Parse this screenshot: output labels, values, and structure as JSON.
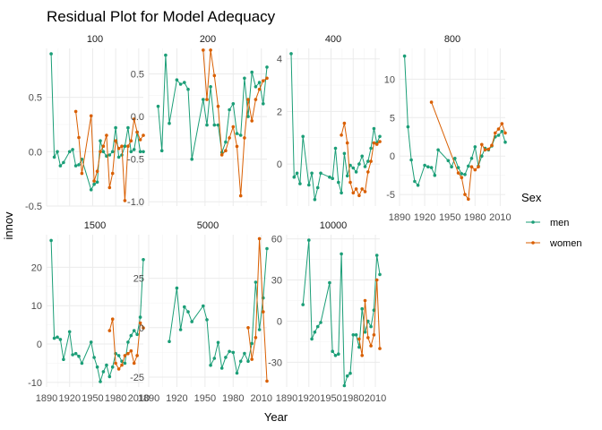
{
  "chart_data": {
    "type": "line",
    "title": "Residual Plot for Model Adequacy",
    "xlabel": "Year",
    "ylabel": "innov",
    "legend": {
      "title": "Sex",
      "placement": "right",
      "entries": [
        "men",
        "women"
      ]
    },
    "colors": {
      "men": "#1b9e77",
      "women": "#d95f02"
    },
    "grid": true,
    "x_ticks": [
      1890,
      1920,
      1950,
      1980,
      2010
    ],
    "xlim": [
      1890,
      2016
    ],
    "panels": [
      {
        "label": "100",
        "ylim": [
          -0.5,
          0.95
        ],
        "y_ticks": [
          -0.5,
          0.0,
          0.5
        ],
        "y_tick_labels": [
          "-0.5",
          "0.0",
          "0.5"
        ],
        "series": [
          {
            "name": "men",
            "x": [
              1896,
              1900,
              1904,
              1908,
              1912,
              1920,
              1924,
              1928,
              1932,
              1936,
              1948,
              1952,
              1956,
              1960,
              1964,
              1968,
              1972,
              1976,
              1980,
              1984,
              1988,
              1992,
              1996,
              2000,
              2004,
              2008,
              2012,
              2016
            ],
            "y": [
              0.9,
              -0.05,
              0.0,
              -0.13,
              -0.1,
              0.0,
              0.02,
              -0.13,
              -0.12,
              -0.07,
              -0.35,
              -0.3,
              -0.28,
              0.1,
              0.0,
              -0.04,
              -0.03,
              0.0,
              0.22,
              -0.05,
              -0.03,
              0.05,
              0.22,
              0.0,
              0.02,
              0.18,
              0.0,
              0.0
            ]
          },
          {
            "name": "women",
            "x": [
              1928,
              1932,
              1936,
              1948,
              1952,
              1956,
              1960,
              1964,
              1968,
              1972,
              1976,
              1980,
              1984,
              1988,
              1992,
              1996,
              2000,
              2004,
              2008,
              2012,
              2016
            ],
            "y": [
              0.37,
              0.13,
              -0.2,
              0.33,
              -0.27,
              -0.18,
              0.0,
              0.05,
              0.15,
              -0.33,
              -0.2,
              0.1,
              0.03,
              0.05,
              -0.45,
              0.05,
              0.1,
              0.3,
              0.18,
              0.11,
              0.15
            ]
          }
        ]
      },
      {
        "label": "200",
        "ylim": [
          -1.05,
          0.8
        ],
        "y_ticks": [
          -1.0,
          -0.5,
          0.0,
          0.5
        ],
        "y_tick_labels": [
          "-1.0",
          "-0.5",
          "0.0",
          "0.5"
        ],
        "series": [
          {
            "name": "men",
            "x": [
              1900,
              1904,
              1908,
              1912,
              1920,
              1924,
              1928,
              1932,
              1936,
              1948,
              1952,
              1956,
              1960,
              1964,
              1968,
              1972,
              1976,
              1980,
              1984,
              1988,
              1992,
              1996,
              2000,
              2004,
              2008,
              2012,
              2016
            ],
            "y": [
              0.12,
              -0.4,
              0.72,
              -0.08,
              0.43,
              0.38,
              0.4,
              0.32,
              -0.5,
              0.2,
              -0.1,
              0.35,
              -0.1,
              -0.1,
              -0.42,
              -0.3,
              0.08,
              0.15,
              -0.2,
              -0.22,
              0.45,
              0.0,
              0.52,
              0.35,
              0.4,
              0.15,
              0.58
            ]
          },
          {
            "name": "women",
            "x": [
              1948,
              1952,
              1956,
              1960,
              1964,
              1968,
              1972,
              1976,
              1980,
              1984,
              1988,
              1992,
              1996,
              2000,
              2004,
              2008,
              2012,
              2016
            ],
            "y": [
              0.78,
              0.2,
              0.78,
              0.48,
              0.12,
              -0.45,
              -0.4,
              -0.25,
              -0.12,
              -0.35,
              -0.93,
              -0.25,
              0.2,
              -0.05,
              0.2,
              0.32,
              0.42,
              0.45
            ]
          }
        ]
      },
      {
        "label": "400",
        "ylim": [
          -1.6,
          4.4
        ],
        "y_ticks": [
          0,
          2,
          4
        ],
        "y_tick_labels": [
          "0",
          "2",
          "4"
        ],
        "series": [
          {
            "name": "men",
            "x": [
              1896,
              1900,
              1904,
              1908,
              1912,
              1920,
              1924,
              1928,
              1932,
              1936,
              1948,
              1952,
              1956,
              1960,
              1964,
              1968,
              1972,
              1976,
              1980,
              1984,
              1988,
              1992,
              1996,
              2000,
              2004,
              2008,
              2012,
              2016
            ],
            "y": [
              4.2,
              -0.5,
              -0.35,
              -0.75,
              1.05,
              -0.8,
              -0.35,
              -1.35,
              -0.9,
              -0.35,
              -0.5,
              -0.55,
              0.6,
              -0.7,
              -1.1,
              0.4,
              -0.45,
              -0.05,
              -0.15,
              -0.3,
              0.0,
              0.3,
              -0.1,
              0.1,
              0.6,
              1.35,
              0.8,
              1.05
            ]
          },
          {
            "name": "women",
            "x": [
              1964,
              1968,
              1972,
              1976,
              1980,
              1984,
              1988,
              1992,
              1996,
              2000,
              2004,
              2008,
              2012,
              2016
            ],
            "y": [
              1.1,
              1.55,
              0.8,
              -0.7,
              -1.1,
              -0.95,
              -1.2,
              -0.95,
              -1.05,
              -0.3,
              0.1,
              0.8,
              0.75,
              0.85
            ]
          }
        ]
      },
      {
        "label": "800",
        "ylim": [
          -6.5,
          14.0
        ],
        "y_ticks": [
          -5,
          0,
          5,
          10
        ],
        "y_tick_labels": [
          "-5",
          "0",
          "5",
          "10"
        ],
        "series": [
          {
            "name": "men",
            "x": [
              1896,
              1900,
              1904,
              1908,
              1912,
              1920,
              1924,
              1928,
              1932,
              1936,
              1948,
              1952,
              1956,
              1960,
              1964,
              1968,
              1972,
              1976,
              1980,
              1984,
              1988,
              1992,
              1996,
              2000,
              2004,
              2008,
              2012,
              2016
            ],
            "y": [
              13.0,
              3.8,
              -0.5,
              -3.3,
              -3.8,
              -1.2,
              -1.4,
              -1.5,
              -2.5,
              0.8,
              -0.6,
              -1.4,
              -0.3,
              -1.5,
              -2.3,
              -2.4,
              -1.3,
              -0.3,
              1.2,
              -1.3,
              0.0,
              1.0,
              0.8,
              1.3,
              2.5,
              2.7,
              3.2,
              1.8
            ]
          },
          {
            "name": "women",
            "x": [
              1928,
              1960,
              1964,
              1968,
              1972,
              1976,
              1980,
              1984,
              1988,
              1992,
              1996,
              2000,
              2004,
              2008,
              2012,
              2016
            ],
            "y": [
              7.0,
              -2.2,
              -2.8,
              -5.0,
              -5.6,
              -1.4,
              -1.8,
              -1.4,
              1.5,
              0.8,
              0.9,
              1.4,
              3.0,
              3.5,
              4.2,
              3.0
            ]
          }
        ]
      },
      {
        "label": "1500",
        "ylim": [
          -11.2,
          28.5
        ],
        "y_ticks": [
          -10,
          0,
          10,
          20
        ],
        "y_tick_labels": [
          "-10",
          "0",
          "10",
          "20"
        ],
        "series": [
          {
            "name": "men",
            "x": [
              1896,
              1900,
              1904,
              1908,
              1912,
              1920,
              1924,
              1928,
              1932,
              1936,
              1948,
              1952,
              1956,
              1960,
              1964,
              1968,
              1972,
              1976,
              1980,
              1984,
              1988,
              1992,
              1996,
              2000,
              2004,
              2008,
              2012,
              2016
            ],
            "y": [
              27.0,
              1.5,
              1.8,
              1.2,
              -4.0,
              3.2,
              -2.8,
              -2.5,
              -3.2,
              -5.0,
              0.5,
              -3.5,
              -6.0,
              -9.8,
              -7.2,
              -5.5,
              -8.5,
              -6.0,
              -2.5,
              -3.0,
              -4.5,
              -5.0,
              0.5,
              2.2,
              3.5,
              2.5,
              7.0,
              22.0
            ]
          },
          {
            "name": "women",
            "x": [
              1972,
              1976,
              1980,
              1984,
              1988,
              1992,
              1996,
              2000,
              2004,
              2008,
              2012,
              2016
            ],
            "y": [
              3.5,
              6.5,
              -5.0,
              -6.5,
              -5.5,
              -3.0,
              -2.5,
              -1.8,
              -5.0,
              -3.0,
              5.5,
              4.2
            ]
          }
        ]
      },
      {
        "label": "5000",
        "ylim": [
          -30,
          47
        ],
        "y_ticks": [
          -25,
          0,
          25
        ],
        "y_tick_labels": [
          "-25",
          "0",
          "25"
        ],
        "series": [
          {
            "name": "men",
            "x": [
              1912,
              1920,
              1924,
              1928,
              1932,
              1936,
              1948,
              1952,
              1956,
              1960,
              1964,
              1968,
              1972,
              1976,
              1980,
              1984,
              1988,
              1992,
              1996,
              2000,
              2004,
              2008,
              2012,
              2016
            ],
            "y": [
              -7.0,
              20.0,
              -1.0,
              10.5,
              8.0,
              3.0,
              11.0,
              4.0,
              -19.0,
              -15.5,
              -7.5,
              -20.5,
              -15.0,
              -12.0,
              -12.5,
              -23.0,
              -17.0,
              -13.0,
              -17.0,
              -8.0,
              23.0,
              -1.0,
              15.0,
              40.0
            ]
          },
          {
            "name": "women",
            "x": [
              1996,
              2000,
              2004,
              2008,
              2012,
              2016
            ],
            "y": [
              0.0,
              -16.0,
              -5.0,
              45.0,
              8.0,
              -27.0
            ]
          }
        ]
      },
      {
        "label": "10000",
        "ylim": [
          -48,
          63
        ],
        "y_ticks": [
          -30,
          0,
          30,
          60
        ],
        "y_tick_labels": [
          "-30",
          "0",
          "30",
          "60"
        ],
        "series": [
          {
            "name": "men",
            "x": [
              1912,
              1920,
              1924,
              1928,
              1932,
              1936,
              1948,
              1952,
              1956,
              1960,
              1964,
              1968,
              1972,
              1976,
              1980,
              1984,
              1988,
              1992,
              1996,
              2000,
              2004,
              2008,
              2012,
              2016
            ],
            "y": [
              12.0,
              59.0,
              -13.0,
              -8.0,
              -4.0,
              -1.0,
              28.0,
              -22.0,
              -25.0,
              -24.0,
              49.0,
              -47.0,
              -40.0,
              -38.0,
              -10.0,
              -10.0,
              -19.0,
              9.0,
              -8.0,
              0.0,
              -4.0,
              8.0,
              48.0,
              34.0
            ]
          },
          {
            "name": "women",
            "x": [
              1988,
              1992,
              1996,
              2000,
              2004,
              2008,
              2012,
              2016
            ],
            "y": [
              -13.0,
              -25.0,
              15.0,
              -12.0,
              -18.0,
              -10.0,
              30.0,
              -20.0
            ]
          }
        ]
      }
    ]
  }
}
